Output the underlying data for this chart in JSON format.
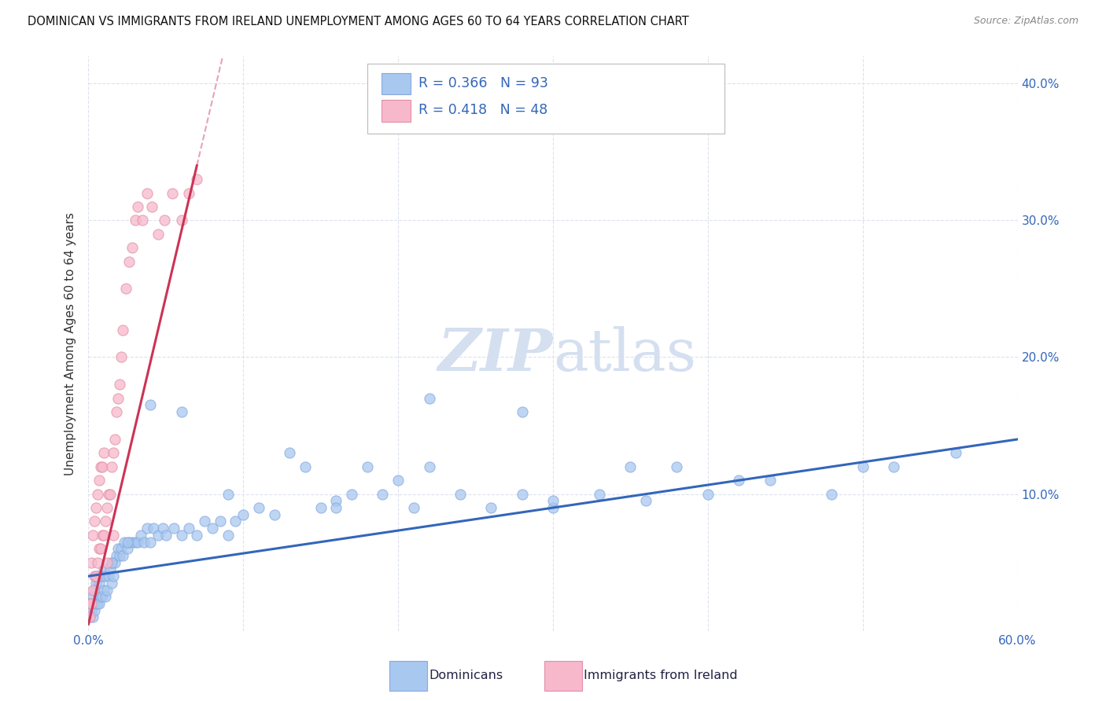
{
  "title": "DOMINICAN VS IMMIGRANTS FROM IRELAND UNEMPLOYMENT AMONG AGES 60 TO 64 YEARS CORRELATION CHART",
  "source": "Source: ZipAtlas.com",
  "ylabel": "Unemployment Among Ages 60 to 64 years",
  "xlim": [
    0.0,
    0.6
  ],
  "ylim": [
    0.0,
    0.42
  ],
  "xticks": [
    0.0,
    0.1,
    0.2,
    0.3,
    0.4,
    0.5,
    0.6
  ],
  "yticks": [
    0.0,
    0.1,
    0.2,
    0.3,
    0.4
  ],
  "dominican_color": "#a8c8f0",
  "ireland_color": "#f8b8cc",
  "trend_blue": "#3366bb",
  "trend_pink": "#cc3355",
  "watermark_color": "#d4dff0",
  "background_color": "#ffffff",
  "grid_color": "#dde2ee",
  "r_dom": "0.366",
  "n_dom": "93",
  "r_ire": "0.418",
  "n_ire": "48",
  "legend_text_color": "#3366bb",
  "label_color": "#3366bb",
  "bottom_dom_color": "#333366",
  "bottom_ire_color": "#333366",
  "dom_x": [
    0.001,
    0.002,
    0.002,
    0.003,
    0.003,
    0.004,
    0.004,
    0.005,
    0.005,
    0.006,
    0.006,
    0.007,
    0.007,
    0.008,
    0.008,
    0.009,
    0.009,
    0.01,
    0.01,
    0.011,
    0.011,
    0.012,
    0.013,
    0.014,
    0.015,
    0.015,
    0.016,
    0.017,
    0.018,
    0.019,
    0.02,
    0.021,
    0.022,
    0.023,
    0.025,
    0.026,
    0.028,
    0.03,
    0.032,
    0.034,
    0.036,
    0.038,
    0.04,
    0.042,
    0.045,
    0.048,
    0.05,
    0.055,
    0.06,
    0.065,
    0.07,
    0.075,
    0.08,
    0.085,
    0.09,
    0.095,
    0.1,
    0.11,
    0.12,
    0.13,
    0.14,
    0.15,
    0.16,
    0.17,
    0.18,
    0.19,
    0.2,
    0.21,
    0.22,
    0.24,
    0.26,
    0.28,
    0.3,
    0.33,
    0.36,
    0.4,
    0.44,
    0.48,
    0.52,
    0.56,
    0.22,
    0.28,
    0.35,
    0.42,
    0.5,
    0.38,
    0.3,
    0.16,
    0.09,
    0.06,
    0.04,
    0.025,
    0.015
  ],
  "dom_y": [
    0.01,
    0.015,
    0.02,
    0.01,
    0.025,
    0.015,
    0.03,
    0.02,
    0.035,
    0.02,
    0.04,
    0.02,
    0.035,
    0.025,
    0.04,
    0.025,
    0.04,
    0.03,
    0.045,
    0.025,
    0.04,
    0.03,
    0.04,
    0.045,
    0.035,
    0.05,
    0.04,
    0.05,
    0.055,
    0.06,
    0.055,
    0.06,
    0.055,
    0.065,
    0.06,
    0.065,
    0.065,
    0.065,
    0.065,
    0.07,
    0.065,
    0.075,
    0.065,
    0.075,
    0.07,
    0.075,
    0.07,
    0.075,
    0.07,
    0.075,
    0.07,
    0.08,
    0.075,
    0.08,
    0.07,
    0.08,
    0.085,
    0.09,
    0.085,
    0.13,
    0.12,
    0.09,
    0.095,
    0.1,
    0.12,
    0.1,
    0.11,
    0.09,
    0.12,
    0.1,
    0.09,
    0.1,
    0.09,
    0.1,
    0.095,
    0.1,
    0.11,
    0.1,
    0.12,
    0.13,
    0.17,
    0.16,
    0.12,
    0.11,
    0.12,
    0.12,
    0.095,
    0.09,
    0.1,
    0.16,
    0.165,
    0.065,
    0.05
  ],
  "ire_x": [
    0.001,
    0.001,
    0.002,
    0.002,
    0.003,
    0.003,
    0.004,
    0.004,
    0.005,
    0.005,
    0.006,
    0.006,
    0.007,
    0.007,
    0.008,
    0.008,
    0.009,
    0.009,
    0.01,
    0.01,
    0.011,
    0.012,
    0.013,
    0.014,
    0.015,
    0.016,
    0.017,
    0.018,
    0.019,
    0.02,
    0.021,
    0.022,
    0.024,
    0.026,
    0.028,
    0.03,
    0.032,
    0.035,
    0.038,
    0.041,
    0.045,
    0.049,
    0.054,
    0.06,
    0.065,
    0.07,
    0.012,
    0.016
  ],
  "ire_y": [
    0.01,
    0.02,
    0.02,
    0.05,
    0.03,
    0.07,
    0.04,
    0.08,
    0.04,
    0.09,
    0.05,
    0.1,
    0.06,
    0.11,
    0.06,
    0.12,
    0.07,
    0.12,
    0.07,
    0.13,
    0.08,
    0.09,
    0.1,
    0.1,
    0.12,
    0.13,
    0.14,
    0.16,
    0.17,
    0.18,
    0.2,
    0.22,
    0.25,
    0.27,
    0.28,
    0.3,
    0.31,
    0.3,
    0.32,
    0.31,
    0.29,
    0.3,
    0.32,
    0.3,
    0.32,
    0.33,
    0.05,
    0.07
  ]
}
